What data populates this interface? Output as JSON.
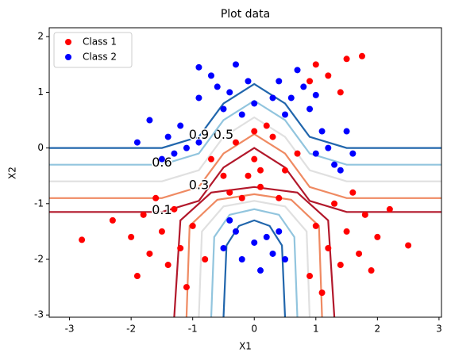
{
  "chart_data": {
    "type": "scatter",
    "title": "Plot data",
    "x_label": "X1",
    "y_label": "X2",
    "xlim": [
      -3.33,
      3.04
    ],
    "ylim": [
      -3.04,
      2.16
    ],
    "xticks": [
      -3,
      -2,
      -1,
      0,
      1,
      2,
      3
    ],
    "yticks": [
      -3,
      -2,
      -1,
      0,
      1,
      2
    ],
    "legend": "upper left",
    "series": [
      {
        "name": "Class 1",
        "color": "#ff0000",
        "x": [
          0,
          -0.3,
          0.3,
          -0.5,
          0.5,
          0.1,
          -0.2,
          0.2,
          -0.7,
          0.7,
          0,
          -0.4,
          0.4,
          0.1,
          -0.1,
          -1.5,
          -1.8,
          -1.2,
          -2.0,
          -1.4,
          -1.0,
          -1.7,
          -2.3,
          -1.3,
          -0.8,
          -1.9,
          -1.1,
          -2.8,
          -1.6,
          1.5,
          1.8,
          1.2,
          2.0,
          1.4,
          1.0,
          1.7,
          2.2,
          1.3,
          0.9,
          1.9,
          1.1,
          2.5,
          1.6,
          1.2,
          1.5,
          1.0,
          1.4,
          1.75,
          0.9
        ],
        "values": [
          -0.2,
          0.1,
          0.2,
          -0.5,
          -0.4,
          -0.7,
          -0.9,
          0.4,
          -0.2,
          -0.1,
          0.3,
          -0.8,
          -0.9,
          -0.4,
          -0.5,
          -1.5,
          -1.2,
          -1.8,
          -1.6,
          -2.1,
          -1.4,
          -1.9,
          -1.3,
          -1.1,
          -2.0,
          -2.3,
          -2.5,
          -1.65,
          -0.9,
          -1.5,
          -1.2,
          -1.8,
          -1.6,
          -2.1,
          -1.4,
          -1.9,
          -1.1,
          -1.0,
          -2.3,
          -2.2,
          -2.6,
          -1.75,
          -0.8,
          1.3,
          1.6,
          1.5,
          1.0,
          1.65,
          1.2
        ]
      },
      {
        "name": "Class 2",
        "color": "#0000ff",
        "x": [
          -0.4,
          -0.7,
          -0.1,
          -0.5,
          -0.3,
          -0.9,
          0,
          -0.6,
          -0.2,
          -0.9,
          0.6,
          0.4,
          0.9,
          0.5,
          0.8,
          0.3,
          0.7,
          1.0,
          -1.4,
          -1.7,
          -1.1,
          -1.5,
          -1.9,
          -1.2,
          -1.3,
          -0.9,
          1.2,
          1.5,
          1.0,
          1.3,
          1.6,
          1.1,
          1.4,
          0,
          -0.3,
          0.3,
          -0.5,
          0.4,
          0.1,
          -0.2,
          0.2,
          0.5,
          -0.4
        ],
        "values": [
          1.0,
          1.3,
          1.2,
          0.7,
          1.5,
          0.9,
          0.8,
          1.1,
          0.6,
          1.45,
          0.9,
          1.2,
          0.7,
          0.6,
          1.1,
          0.9,
          1.4,
          0.95,
          0.2,
          0.5,
          0.0,
          -0.2,
          0.1,
          0.4,
          -0.1,
          0.1,
          0.0,
          0.3,
          -0.1,
          -0.3,
          -0.1,
          0.3,
          -0.4,
          -1.7,
          -1.5,
          -1.9,
          -1.8,
          -1.5,
          -2.2,
          -2.0,
          -1.6,
          -2.0,
          -1.3
        ]
      }
    ],
    "contours": [
      {
        "level": 0.1,
        "color": "#b2182b",
        "x": [
          -3.33,
          -1.5,
          -0.9,
          -0.5,
          0,
          0.5,
          0.9,
          1.5,
          3.04,
          null,
          -1.3,
          -1.2,
          -0.7,
          0,
          0.7,
          1.2,
          1.3
        ],
        "y": [
          -1.15,
          -1.15,
          -0.95,
          -0.35,
          0.0,
          -0.35,
          -0.95,
          -1.15,
          -1.15,
          null,
          -3.04,
          -1.3,
          -0.8,
          -0.7,
          -0.8,
          -1.3,
          -3.04
        ]
      },
      {
        "level": 0.3,
        "color": "#ef8a62",
        "x": [
          -3.33,
          -1.5,
          -0.9,
          -0.5,
          0,
          0.5,
          0.9,
          1.5,
          3.04,
          null,
          -1.1,
          -1.05,
          -0.6,
          0,
          0.6,
          1.05,
          1.1
        ],
        "y": [
          -0.9,
          -0.9,
          -0.7,
          -0.1,
          0.25,
          -0.1,
          -0.7,
          -0.9,
          -0.9,
          null,
          -3.04,
          -1.4,
          -0.93,
          -0.83,
          -0.93,
          -1.4,
          -3.04
        ]
      },
      {
        "level": 0.5,
        "color": "#e0e0e0",
        "x": [
          -3.33,
          -1.5,
          -0.9,
          -0.5,
          0,
          0.5,
          0.9,
          1.5,
          3.04,
          null,
          -0.9,
          -0.85,
          -0.5,
          0,
          0.5,
          0.85,
          0.9
        ],
        "y": [
          -0.6,
          -0.6,
          -0.4,
          0.2,
          0.55,
          0.2,
          -0.4,
          -0.6,
          -0.6,
          null,
          -3.04,
          -1.5,
          -1.05,
          -0.95,
          -1.05,
          -1.5,
          -3.04
        ]
      },
      {
        "level": 0.6,
        "color": "#92c5de",
        "x": [
          -3.33,
          -1.5,
          -0.9,
          -0.5,
          0,
          0.5,
          0.9,
          1.5,
          3.04,
          null,
          -0.7,
          -0.65,
          -0.4,
          0,
          0.4,
          0.65,
          0.7
        ],
        "y": [
          -0.3,
          -0.3,
          -0.1,
          0.5,
          0.85,
          0.5,
          -0.1,
          -0.3,
          -0.3,
          null,
          -3.04,
          -1.6,
          -1.2,
          -1.1,
          -1.2,
          -1.6,
          -3.04
        ]
      },
      {
        "level": 0.9,
        "color": "#2166ac",
        "x": [
          -3.33,
          -1.5,
          -0.9,
          -0.5,
          0,
          0.5,
          0.9,
          1.5,
          3.04,
          null,
          -0.5,
          -0.45,
          -0.25,
          0,
          0.25,
          0.45,
          0.5
        ],
        "y": [
          0.0,
          0.0,
          0.2,
          0.8,
          1.15,
          0.8,
          0.2,
          0.0,
          0.0,
          null,
          -3.04,
          -1.75,
          -1.4,
          -1.3,
          -1.4,
          -1.75,
          -3.04
        ]
      }
    ]
  }
}
